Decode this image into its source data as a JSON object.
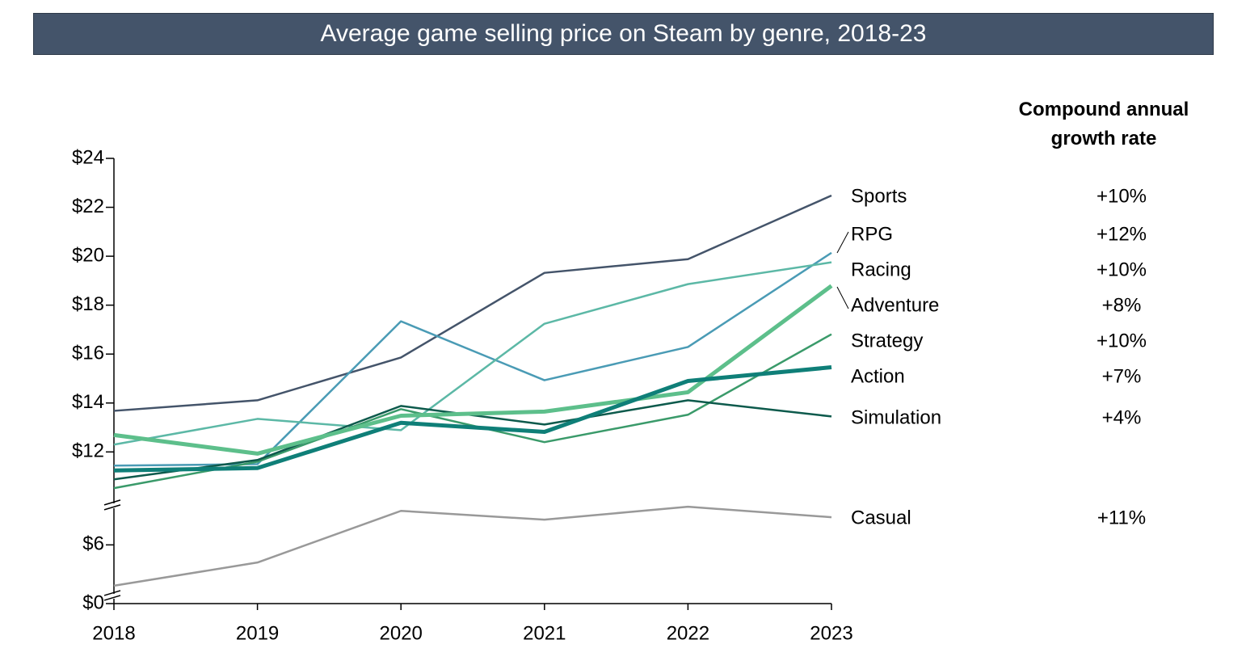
{
  "chart_data": {
    "type": "line",
    "title": "Average game selling price on Steam by genre, 2018-23",
    "growth_header": "Compound annual growth rate",
    "categories": [
      "2018",
      "2019",
      "2020",
      "2021",
      "2022",
      "2023"
    ],
    "ylim": [
      0,
      24
    ],
    "y_breaks": [
      [
        0.3,
        3.9
      ],
      [
        7.6,
        9.8
      ]
    ],
    "yticks": [
      {
        "value": 24,
        "label": "$24"
      },
      {
        "value": 22,
        "label": "$22"
      },
      {
        "value": 20,
        "label": "$20"
      },
      {
        "value": 18,
        "label": "$18"
      },
      {
        "value": 16,
        "label": "$16"
      },
      {
        "value": 14,
        "label": "$14"
      },
      {
        "value": 12,
        "label": "$12"
      },
      {
        "value": 6,
        "label": "$6"
      },
      {
        "value": 0,
        "label": "$0"
      }
    ],
    "series": [
      {
        "name": "Sports",
        "color": "#44546a",
        "line_width": 2.5,
        "values": [
          13.68,
          14.11,
          15.86,
          19.32,
          19.88,
          22.48
        ],
        "growth_rate": "+10%"
      },
      {
        "name": "RPG",
        "color": "#4a9bb5",
        "line_width": 2.5,
        "values": [
          11.44,
          11.5,
          17.34,
          14.93,
          16.29,
          20.14
        ],
        "growth_rate": "+12%"
      },
      {
        "name": "Racing",
        "color": "#5cb8a6",
        "line_width": 2.5,
        "values": [
          12.3,
          13.35,
          12.89,
          17.24,
          18.86,
          19.75
        ],
        "growth_rate": "+10%"
      },
      {
        "name": "Adventure",
        "color": "#5dbf8b",
        "line_width": 5,
        "values": [
          12.69,
          11.93,
          13.48,
          13.65,
          14.44,
          18.79
        ],
        "growth_rate": "+8%"
      },
      {
        "name": "Strategy",
        "color": "#3a9a6a",
        "line_width": 2.5,
        "values": [
          10.52,
          11.6,
          13.75,
          12.4,
          13.52,
          16.81
        ],
        "growth_rate": "+10%"
      },
      {
        "name": "Action",
        "color": "#0f7f78",
        "line_width": 5,
        "values": [
          11.24,
          11.34,
          13.19,
          12.82,
          14.9,
          15.46
        ],
        "growth_rate": "+7%"
      },
      {
        "name": "Simulation",
        "color": "#0d5a4c",
        "line_width": 2.5,
        "values": [
          10.88,
          11.67,
          13.88,
          13.12,
          14.11,
          13.45
        ],
        "growth_rate": "+4%"
      },
      {
        "name": "Casual",
        "color": "#999999",
        "line_width": 2.5,
        "values": [
          4.33,
          5.28,
          7.39,
          7.03,
          7.56,
          7.13
        ],
        "growth_rate": "+11%"
      }
    ]
  }
}
